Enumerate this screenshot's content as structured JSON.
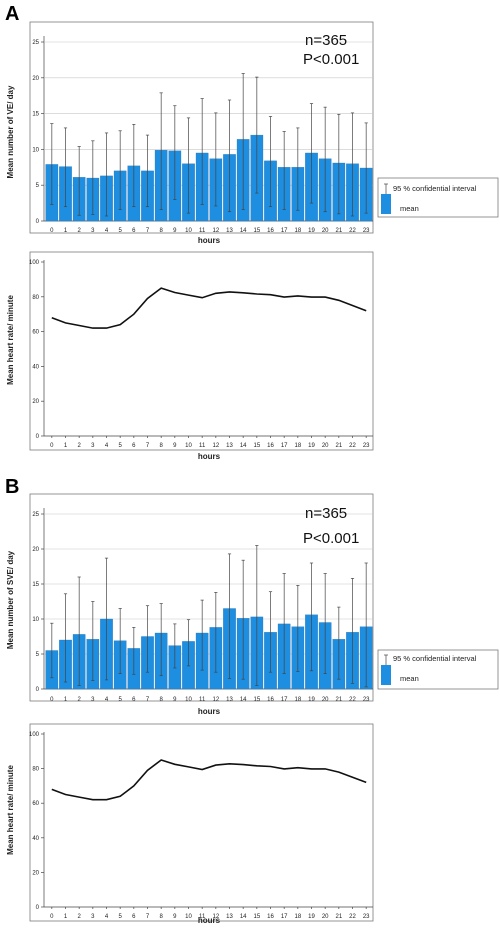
{
  "colors": {
    "bar": "#1e8ee0",
    "line": "#111111",
    "grid": "#c8c8c8"
  },
  "figure": {
    "panels": [
      {
        "letter": "A",
        "annotation_n": "n=365",
        "annotation_p": "P<0.001",
        "legend": {
          "ci_label": "95 % confidential interval",
          "mean_label": "mean"
        }
      },
      {
        "letter": "B",
        "annotation_n": "n=365",
        "annotation_p": "P<0.001",
        "legend": {
          "ci_label": "95 % confidential interval",
          "mean_label": "mean"
        }
      }
    ]
  },
  "chart_data": [
    {
      "type": "bar",
      "panel": "A",
      "categories": [
        "0",
        "1",
        "2",
        "3",
        "4",
        "5",
        "6",
        "7",
        "8",
        "9",
        "10",
        "11",
        "12",
        "13",
        "14",
        "15",
        "16",
        "17",
        "18",
        "19",
        "20",
        "21",
        "22",
        "23"
      ],
      "series": [
        {
          "name": "mean",
          "values": [
            7.9,
            7.6,
            6.1,
            6.0,
            6.3,
            7.0,
            7.7,
            7.0,
            9.9,
            9.8,
            8.0,
            9.5,
            8.7,
            9.3,
            11.4,
            12.0,
            8.4,
            7.5,
            7.5,
            9.5,
            8.7,
            8.1,
            8.0,
            7.4
          ],
          "ci_lower": [
            2.3,
            2.0,
            0.8,
            0.9,
            0.7,
            1.6,
            2.0,
            2.0,
            1.6,
            3.0,
            1.1,
            2.3,
            2.1,
            1.3,
            1.6,
            3.9,
            2.0,
            1.6,
            1.5,
            2.5,
            1.3,
            1.0,
            0.7,
            1.1
          ],
          "ci_upper": [
            13.6,
            13.0,
            10.4,
            11.2,
            12.3,
            12.6,
            13.5,
            12.0,
            17.9,
            16.1,
            14.4,
            17.1,
            15.1,
            16.9,
            20.6,
            20.1,
            14.6,
            12.5,
            13.0,
            16.4,
            15.9,
            14.9,
            15.1,
            13.7
          ]
        }
      ],
      "xlabel": "hours",
      "ylabel": "Mean number of VE/ day",
      "ylim": [
        0,
        25
      ],
      "yticks": [
        0,
        5,
        10,
        15,
        20,
        25
      ],
      "grid": true,
      "legend_position": "right"
    },
    {
      "type": "line",
      "panel": "A",
      "x": [
        "0",
        "1",
        "2",
        "3",
        "4",
        "5",
        "6",
        "7",
        "8",
        "9",
        "10",
        "11",
        "12",
        "13",
        "14",
        "15",
        "16",
        "17",
        "18",
        "19",
        "20",
        "21",
        "22",
        "23"
      ],
      "series": [
        {
          "values": [
            68,
            65,
            63.5,
            62,
            62,
            64,
            70,
            79,
            85,
            82.5,
            81,
            79.5,
            82,
            82.8,
            82.3,
            81.6,
            81.2,
            79.8,
            80.5,
            79.8,
            79.8,
            78,
            75,
            72
          ]
        }
      ],
      "xlabel": "hours",
      "ylabel": "Mean heart rate/ minute",
      "ylim": [
        0,
        100
      ],
      "yticks": [
        0,
        20,
        40,
        60,
        80,
        100
      ],
      "grid": false
    },
    {
      "type": "bar",
      "panel": "B",
      "categories": [
        "0",
        "1",
        "2",
        "3",
        "4",
        "5",
        "6",
        "7",
        "8",
        "9",
        "10",
        "11",
        "12",
        "13",
        "14",
        "15",
        "16",
        "17",
        "18",
        "19",
        "20",
        "21",
        "22",
        "23"
      ],
      "series": [
        {
          "name": "mean",
          "values": [
            5.5,
            7.0,
            7.8,
            7.1,
            10.0,
            6.9,
            5.8,
            7.5,
            8.0,
            6.2,
            6.8,
            8.0,
            8.8,
            11.5,
            10.1,
            10.3,
            8.1,
            9.3,
            8.9,
            10.6,
            9.5,
            7.1,
            8.1,
            8.9
          ],
          "ci_lower": [
            1.6,
            1.0,
            0.5,
            1.2,
            1.3,
            2.2,
            2.1,
            2.4,
            1.9,
            3.0,
            3.3,
            2.7,
            2.4,
            1.5,
            1.4,
            0.5,
            2.4,
            2.2,
            2.5,
            2.6,
            2.2,
            1.4,
            0.8,
            0.3
          ],
          "ci_upper": [
            9.4,
            13.6,
            16.0,
            12.5,
            18.7,
            11.5,
            8.8,
            11.9,
            12.2,
            9.3,
            9.9,
            12.7,
            13.8,
            19.3,
            18.4,
            20.5,
            13.9,
            16.5,
            14.8,
            18.0,
            16.5,
            11.7,
            15.8,
            18.0
          ]
        }
      ],
      "xlabel": "hours",
      "ylabel": "Mean number of SVE/ day",
      "ylim": [
        0,
        25
      ],
      "yticks": [
        0,
        5,
        10,
        15,
        20,
        25
      ],
      "grid": true,
      "legend_position": "right"
    },
    {
      "type": "line",
      "panel": "B",
      "x": [
        "0",
        "1",
        "2",
        "3",
        "4",
        "5",
        "6",
        "7",
        "8",
        "9",
        "10",
        "11",
        "12",
        "13",
        "14",
        "15",
        "16",
        "17",
        "18",
        "19",
        "20",
        "21",
        "22",
        "23"
      ],
      "series": [
        {
          "values": [
            68,
            65,
            63.5,
            62,
            62,
            64,
            70,
            79,
            85,
            82.5,
            81,
            79.5,
            82,
            82.8,
            82.3,
            81.6,
            81.2,
            79.8,
            80.5,
            79.8,
            79.8,
            78,
            75,
            72
          ]
        }
      ],
      "xlabel": "hours",
      "ylabel": "Mean heart rate/ minute",
      "ylim": [
        0,
        100
      ],
      "yticks": [
        0,
        20,
        40,
        60,
        80,
        100
      ],
      "grid": false
    }
  ]
}
